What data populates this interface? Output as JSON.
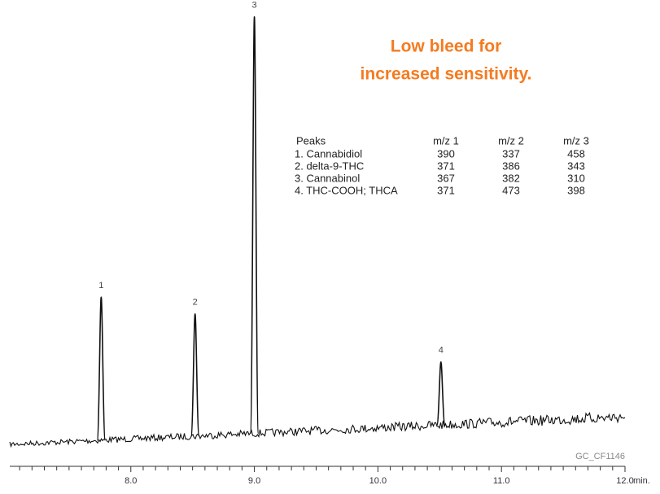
{
  "chart_data": {
    "type": "chromatogram",
    "annotation": [
      "Low bleed for",
      "increased sensitivity."
    ],
    "x": [
      7.76,
      8.52,
      9.0,
      10.51
    ],
    "values": [
      34,
      29,
      99,
      15
    ],
    "peak_labels": [
      "1",
      "2",
      "3",
      "4"
    ],
    "color": "#111111",
    "xlim": [
      7.02,
      12.0
    ],
    "ylim": [
      0,
      100
    ],
    "xticks": [
      {
        "value": 8,
        "label": "8.0"
      },
      {
        "value": 9,
        "label": "9.0"
      },
      {
        "value": 10,
        "label": "10.0"
      },
      {
        "value": 11,
        "label": "11.0"
      },
      {
        "value": 12,
        "label": "12.0"
      }
    ],
    "xminorticks": [
      7.1,
      7.2,
      7.3,
      7.4,
      7.5,
      7.6,
      7.7,
      7.8,
      7.9,
      8.1,
      8.2,
      8.3,
      8.4,
      8.5,
      8.6,
      8.7,
      8.8,
      8.9,
      9.1,
      9.2,
      9.3,
      9.4,
      9.5,
      9.6,
      9.7,
      9.8,
      9.9,
      10.1,
      10.2,
      10.3,
      10.4,
      10.5,
      10.6,
      10.7,
      10.8,
      10.9,
      11.1,
      11.2,
      11.3,
      11.4,
      11.5,
      11.6,
      11.7,
      11.8,
      11.9
    ],
    "xlabel": "min.",
    "code": "GC_CF1146",
    "table": {
      "header": [
        "Peaks",
        "m/z 1",
        "m/z 2",
        "m/z 3"
      ],
      "rows": [
        [
          "1. Cannabidiol",
          "390",
          "337",
          "458"
        ],
        [
          "2. delta-9-THC",
          "371",
          "386",
          "343"
        ],
        [
          "3. Cannabinol",
          "367",
          "382",
          "310"
        ],
        [
          "4. THC-COOH; THCA",
          "371",
          "473",
          "398"
        ]
      ]
    }
  }
}
